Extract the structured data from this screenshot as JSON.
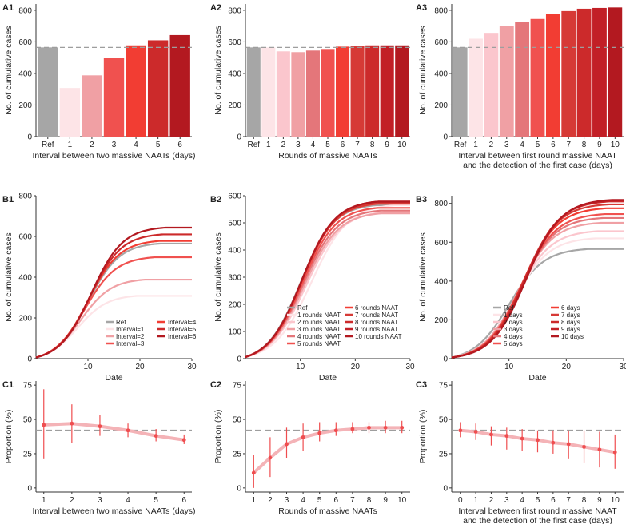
{
  "figure": {
    "palette_ref": "#a6a6a6",
    "palette_reds": [
      "#fde4e7",
      "#fbc6cd",
      "#f0a0a4",
      "#e4767a",
      "#f0514f",
      "#f23d33",
      "#d63a36",
      "#cc2a2b",
      "#c21f26",
      "#b31920"
    ],
    "band_color": "#f4b3b7",
    "point_color": "#ef4d4f",
    "dash_color": "#9e9e9e"
  },
  "chart_data": [
    {
      "id": "A1",
      "type": "bar",
      "panel_label": "A1",
      "xlabel": "Interval between two massive NAATs (days)",
      "ylabel": "No. of cumulative cases",
      "categories": [
        "Ref",
        "1",
        "2",
        "3",
        "4",
        "5",
        "6"
      ],
      "values": [
        565,
        308,
        388,
        498,
        578,
        610,
        643
      ],
      "ylim": [
        0,
        840
      ],
      "yticks": [
        "0",
        "200",
        "400",
        "600",
        "800"
      ],
      "ref_line": 565
    },
    {
      "id": "A2",
      "type": "bar",
      "panel_label": "A2",
      "xlabel": "Rounds of massive NAATs",
      "ylabel": "No. of cumulative cases",
      "categories": [
        "Ref",
        "1",
        "2",
        "3",
        "4",
        "5",
        "6",
        "7",
        "8",
        "9",
        "10"
      ],
      "values": [
        565,
        565,
        540,
        535,
        545,
        555,
        570,
        572,
        578,
        578,
        578
      ],
      "ylim": [
        0,
        840
      ],
      "yticks": [
        "0",
        "200",
        "400",
        "600",
        "800"
      ],
      "ref_line": 565
    },
    {
      "id": "A3",
      "type": "bar",
      "panel_label": "A3",
      "xlabel": "Interval between first round massive NAAT",
      "xlabel2": "and the detection of the first case (days)",
      "ylabel": "No. of cumulative cases",
      "categories": [
        "Ref",
        "1",
        "2",
        "3",
        "4",
        "5",
        "6",
        "7",
        "8",
        "9",
        "10"
      ],
      "values": [
        565,
        620,
        657,
        700,
        725,
        745,
        775,
        795,
        810,
        815,
        818
      ],
      "ylim": [
        0,
        840
      ],
      "yticks": [
        "0",
        "200",
        "400",
        "600",
        "800"
      ],
      "ref_line": 565
    },
    {
      "id": "B1",
      "type": "line",
      "panel_label": "B1",
      "xlabel": "Date",
      "ylabel": "No. of cumulative cases",
      "xlim": [
        0,
        30
      ],
      "ylim": [
        0,
        800
      ],
      "xticks": [
        "10",
        "20",
        "30"
      ],
      "yticks": [
        "0",
        "200",
        "400",
        "600",
        "800"
      ],
      "legend": [
        "Ref",
        "Interval=1",
        "Interval=2",
        "Interval=3",
        "Interval=4",
        "Interval=5",
        "Interval=6"
      ],
      "legend_pos": "bottom-right",
      "series": [
        {
          "name": "Ref",
          "final": 565,
          "t50": 10.0,
          "k": 0.33
        },
        {
          "name": "Interval=1",
          "final": 308,
          "t50": 8.0,
          "k": 0.35
        },
        {
          "name": "Interval=2",
          "final": 388,
          "t50": 8.6,
          "k": 0.34
        },
        {
          "name": "Interval=3",
          "final": 498,
          "t50": 9.4,
          "k": 0.33
        },
        {
          "name": "Interval=4",
          "final": 578,
          "t50": 10.0,
          "k": 0.33
        },
        {
          "name": "Interval=5",
          "final": 610,
          "t50": 10.3,
          "k": 0.33
        },
        {
          "name": "Interval=6",
          "final": 643,
          "t50": 10.6,
          "k": 0.33
        }
      ]
    },
    {
      "id": "B2",
      "type": "line",
      "panel_label": "B2",
      "xlabel": "Date",
      "ylabel": "No. of cumulative cases",
      "xlim": [
        0,
        30
      ],
      "ylim": [
        0,
        600
      ],
      "xticks": [
        "10",
        "20",
        "30"
      ],
      "yticks": [
        "0",
        "100",
        "200",
        "300",
        "400",
        "500",
        "600"
      ],
      "legend": [
        "Ref",
        "1 rounds NAAT",
        "2 rounds NAAT",
        "3 rounds NAAT",
        "4 rounds NAAT",
        "5 rounds NAAT",
        "6 rounds NAAT",
        "7 rounds NAAT",
        "8 rounds NAAT",
        "9 rounds NAAT",
        "10 rounds NAAT"
      ],
      "legend_pos": "bottom-right",
      "series": [
        {
          "name": "Ref",
          "final": 565,
          "t50": 10.0,
          "k": 0.33
        },
        {
          "name": "1 rounds NAAT",
          "final": 565,
          "t50": 12.0,
          "k": 0.3
        },
        {
          "name": "2 rounds NAAT",
          "final": 540,
          "t50": 11.0,
          "k": 0.31
        },
        {
          "name": "3 rounds NAAT",
          "final": 535,
          "t50": 10.6,
          "k": 0.32
        },
        {
          "name": "4 rounds NAAT",
          "final": 545,
          "t50": 10.4,
          "k": 0.32
        },
        {
          "name": "5 rounds NAAT",
          "final": 555,
          "t50": 10.3,
          "k": 0.33
        },
        {
          "name": "6 rounds NAAT",
          "final": 570,
          "t50": 10.2,
          "k": 0.33
        },
        {
          "name": "7 rounds NAAT",
          "final": 572,
          "t50": 10.2,
          "k": 0.33
        },
        {
          "name": "8 rounds NAAT",
          "final": 578,
          "t50": 10.2,
          "k": 0.33
        },
        {
          "name": "9 rounds NAAT",
          "final": 578,
          "t50": 10.2,
          "k": 0.33
        },
        {
          "name": "10 rounds NAAT",
          "final": 578,
          "t50": 10.2,
          "k": 0.33
        }
      ]
    },
    {
      "id": "B3",
      "type": "line",
      "panel_label": "B3",
      "xlabel": "Date",
      "ylabel": "No. of cumulative cases",
      "xlim": [
        0,
        30
      ],
      "ylim": [
        0,
        840
      ],
      "xticks": [
        "10",
        "20",
        "30"
      ],
      "yticks": [
        "0",
        "200",
        "400",
        "600",
        "800"
      ],
      "legend": [
        "Ref",
        "1 days",
        "2 days",
        "3 days",
        "4 days",
        "5 days",
        "6 days",
        "7 days",
        "8 days",
        "9 days",
        "10 days"
      ],
      "legend_pos": "bottom-right",
      "series": [
        {
          "name": "Ref",
          "final": 565,
          "t50": 10.0,
          "k": 0.33
        },
        {
          "name": "1 days",
          "final": 620,
          "t50": 11.0,
          "k": 0.33
        },
        {
          "name": "2 days",
          "final": 657,
          "t50": 11.3,
          "k": 0.33
        },
        {
          "name": "3 days",
          "final": 700,
          "t50": 11.6,
          "k": 0.33
        },
        {
          "name": "4 days",
          "final": 725,
          "t50": 11.9,
          "k": 0.33
        },
        {
          "name": "5 days",
          "final": 745,
          "t50": 12.1,
          "k": 0.33
        },
        {
          "name": "6 days",
          "final": 775,
          "t50": 12.3,
          "k": 0.33
        },
        {
          "name": "7 days",
          "final": 795,
          "t50": 12.5,
          "k": 0.33
        },
        {
          "name": "8 days",
          "final": 810,
          "t50": 12.7,
          "k": 0.33
        },
        {
          "name": "9 days",
          "final": 815,
          "t50": 12.9,
          "k": 0.33
        },
        {
          "name": "10 days",
          "final": 818,
          "t50": 13.0,
          "k": 0.33
        }
      ]
    },
    {
      "id": "C1",
      "type": "scatter",
      "panel_label": "C1",
      "xlabel": "Interval between two massive NAATs (days)",
      "ylabel": "Proportion (%)",
      "ylim": [
        -3,
        78
      ],
      "yticks": [
        "0",
        "25",
        "50",
        "75"
      ],
      "x": [
        "1",
        "2",
        "3",
        "4",
        "5",
        "6"
      ],
      "y": [
        46,
        47,
        45,
        42,
        38,
        35
      ],
      "lower": [
        21,
        33,
        38,
        37,
        34,
        32
      ],
      "upper": [
        72,
        61,
        53,
        47,
        43,
        39
      ],
      "ref_line": 42
    },
    {
      "id": "C2",
      "type": "scatter",
      "panel_label": "C2",
      "xlabel": "Rounds of massive NAATs",
      "ylabel": "Proportion (%)",
      "ylim": [
        -3,
        78
      ],
      "yticks": [
        "0",
        "25",
        "50",
        "75"
      ],
      "x": [
        "1",
        "2",
        "3",
        "4",
        "5",
        "6",
        "7",
        "8",
        "9",
        "10"
      ],
      "y": [
        11,
        22,
        32,
        37,
        40,
        42,
        43,
        44,
        44,
        44
      ],
      "lower": [
        0,
        8,
        22,
        27,
        34,
        38,
        40,
        40,
        40,
        40
      ],
      "upper": [
        24,
        37,
        44,
        47,
        48,
        48,
        48,
        48,
        49,
        49
      ],
      "ref_line": 42
    },
    {
      "id": "C3",
      "type": "scatter",
      "panel_label": "C3",
      "xlabel": "Interval between first round massive NAAT",
      "xlabel2": "and the detection of the first case (days)",
      "ylabel": "Proportion (%)",
      "ylim": [
        -3,
        78
      ],
      "yticks": [
        "0",
        "25",
        "50",
        "75"
      ],
      "x": [
        "0",
        "1",
        "2",
        "3",
        "4",
        "5",
        "6",
        "7",
        "8",
        "9",
        "10"
      ],
      "y": [
        42,
        41,
        39,
        38,
        36,
        35,
        33,
        32,
        30,
        28,
        26
      ],
      "lower": [
        37,
        35,
        31,
        28,
        27,
        26,
        25,
        21,
        18,
        15,
        14
      ],
      "upper": [
        48,
        47,
        45,
        44,
        43,
        42,
        42,
        42,
        42,
        41,
        39
      ],
      "ref_line": 42
    }
  ]
}
